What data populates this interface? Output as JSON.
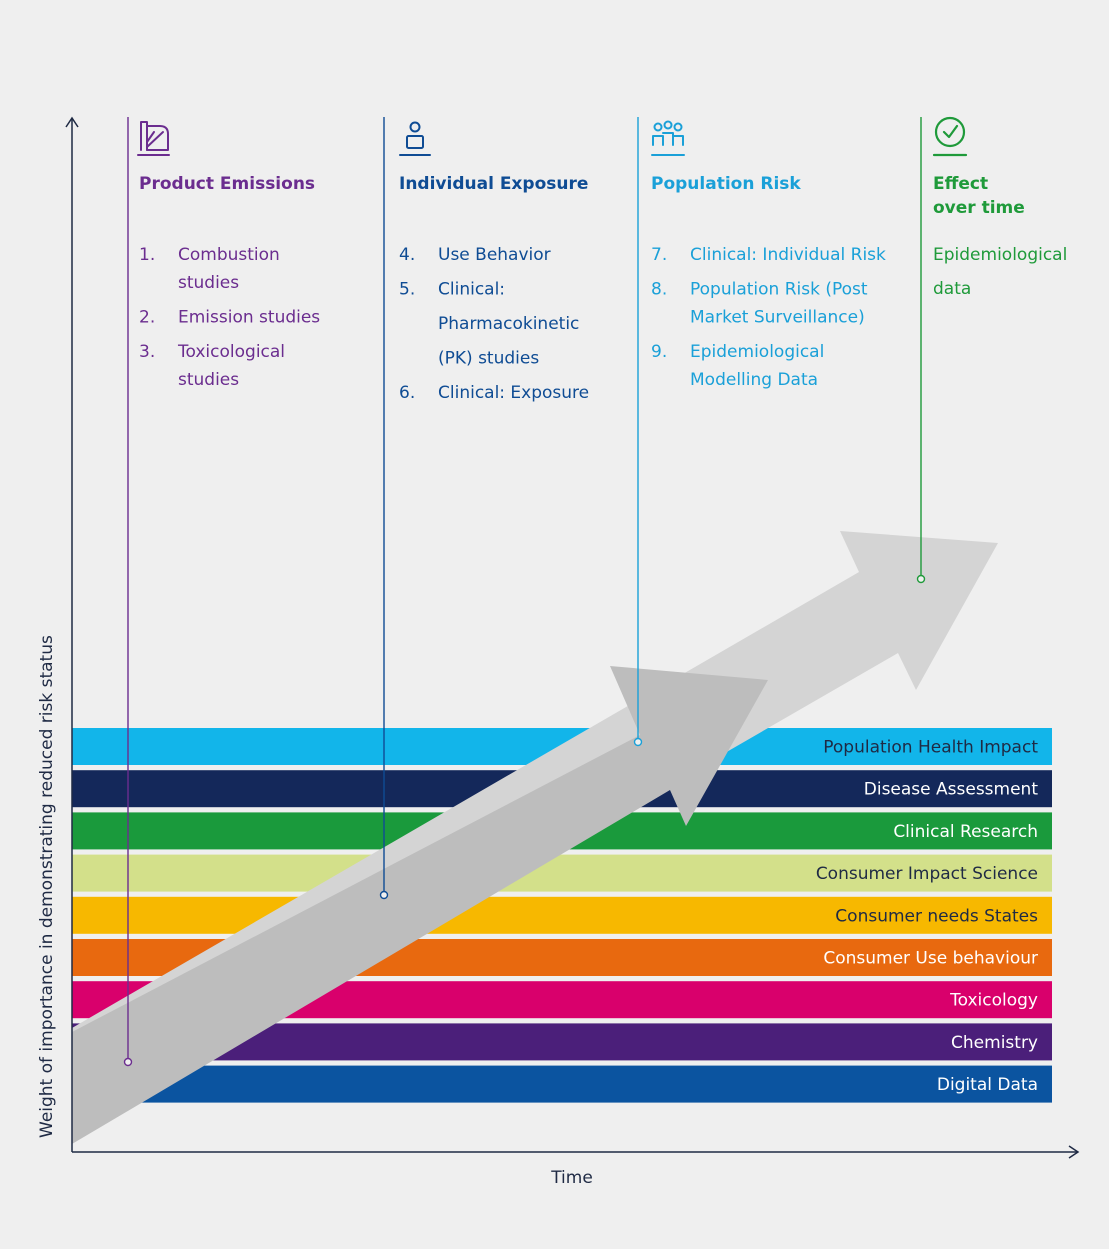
{
  "axes": {
    "y_label": "Weight of importance in demonstrating reduced risk status",
    "x_label": "Time"
  },
  "columns": [
    {
      "id": "product-emissions",
      "icon": "product-emissions-icon",
      "color": "#6b2d8f",
      "title": [
        "Product Emissions"
      ],
      "items": [
        {
          "num": "1.",
          "lines": [
            "Combustion",
            "studies"
          ]
        },
        {
          "num": "2.",
          "lines": [
            "Emission studies"
          ]
        },
        {
          "num": "3.",
          "lines": [
            "Toxicological",
            "studies"
          ]
        }
      ]
    },
    {
      "id": "individual-exposure",
      "icon": "person-icon",
      "color": "#0f4c94",
      "title": [
        "Individual  Exposure"
      ],
      "items": [
        {
          "num": "4.",
          "lines": [
            "Use Behavior"
          ]
        },
        {
          "num": "5.",
          "lines": [
            "Clinical:",
            "Pharmacokinetic",
            "(PK) studies"
          ]
        },
        {
          "num": "6.",
          "lines": [
            "Clinical: Exposure"
          ]
        }
      ]
    },
    {
      "id": "population-risk",
      "icon": "group-icon",
      "color": "#1aa0d8",
      "title": [
        "Population Risk"
      ],
      "items": [
        {
          "num": "7.",
          "lines": [
            "Clinical: Individual Risk"
          ]
        },
        {
          "num": "8.",
          "lines": [
            "Population Risk (Post",
            "Market Surveillance)"
          ]
        },
        {
          "num": "9.",
          "lines": [
            "Epidemiological",
            "Modelling Data"
          ]
        }
      ]
    },
    {
      "id": "effect-over-time",
      "icon": "clock-check-icon",
      "color": "#1f9a3a",
      "title": [
        "Effect",
        "over time"
      ],
      "items": [
        {
          "num": "",
          "lines": [
            "Epidemiological",
            "data"
          ]
        }
      ]
    }
  ],
  "bands": [
    {
      "label": "Population Health Impact",
      "color": "#12b5ea",
      "text_color": "#1f2a44"
    },
    {
      "label": "Disease Assessment",
      "color": "#14285a",
      "text_color": "#ffffff"
    },
    {
      "label": "Clinical Research",
      "color": "#1a9a3c",
      "text_color": "#ffffff"
    },
    {
      "label": "Consumer Impact Science",
      "color": "#d3e08a",
      "text_color": "#1f2a44"
    },
    {
      "label": "Consumer needs States",
      "color": "#f7b800",
      "text_color": "#1f2a44"
    },
    {
      "label": "Consumer Use behaviour",
      "color": "#e8690f",
      "text_color": "#ffffff"
    },
    {
      "label": "Toxicology",
      "color": "#d9006c",
      "text_color": "#ffffff"
    },
    {
      "label": "Chemistry",
      "color": "#4b1f7a",
      "text_color": "#ffffff"
    },
    {
      "label": "Digital Data",
      "color": "#0b54a0",
      "text_color": "#ffffff"
    }
  ],
  "arrow_colors": {
    "back": "#d4d4d4",
    "front": "#bdbdbd"
  },
  "axis_color": "#1f2a44"
}
